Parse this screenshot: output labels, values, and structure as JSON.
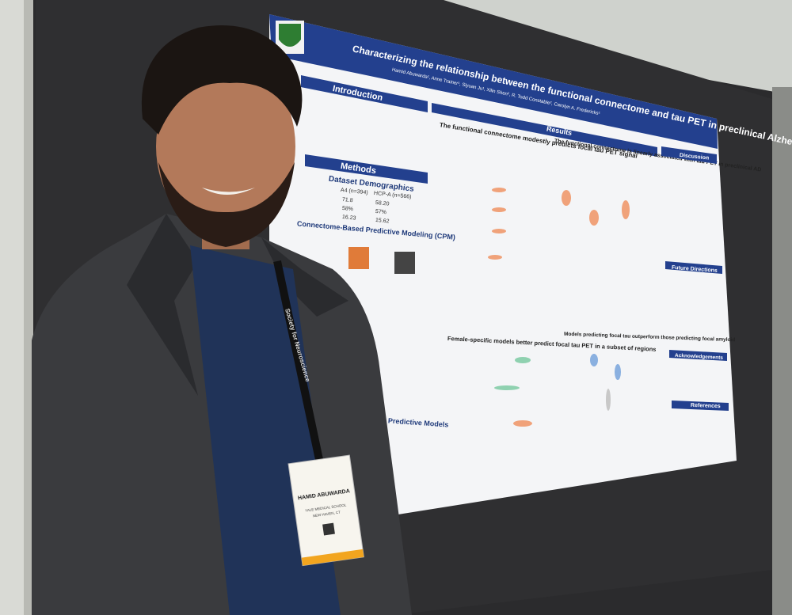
{
  "poster": {
    "title": "Characterizing the relationship between the functional connectome and tau PET in preclinical Alzheimer's disease",
    "authors": "Hamid Abuwarda¹, Anne Trainer¹, Siyuan Ju¹, Xilin Shen², R. Todd Constable², Carolyn A. Fredericks¹",
    "sections": {
      "introduction": "Introduction",
      "methods": "Methods",
      "demographics": "Dataset Demographics",
      "cpm": "Connectome-Based Predictive Modeling (CPM)",
      "krr": "(KRR) Predictive Models",
      "results": "Results",
      "discussion": "Discussion",
      "future": "Future Directions",
      "acknowledgements": "Acknowledgements",
      "references": "References"
    },
    "demographics_table": {
      "header": [
        "A4 (n=394)",
        "HCP-A (n=566)"
      ],
      "rows": [
        [
          "71.8",
          "58.20"
        ],
        [
          "58%",
          "57%"
        ],
        [
          "16.23",
          "15.62"
        ]
      ]
    },
    "panels": [
      "The functional connectome modestly predicts focal tau PET signal",
      "The functional connectome is linearly associated with tau PET in preclinical AD",
      "Female-specific models better predict focal tau PET in a subset of regions",
      "Models predicting focal tau outperform those predicting focal amyloid"
    ]
  },
  "badge": {
    "name": "HAMID ABUWARDA",
    "affiliation": "YALE MEDICAL SCHOOL",
    "city": "NEW HAVEN, CT"
  },
  "lanyard": "Society for Neuroscience"
}
